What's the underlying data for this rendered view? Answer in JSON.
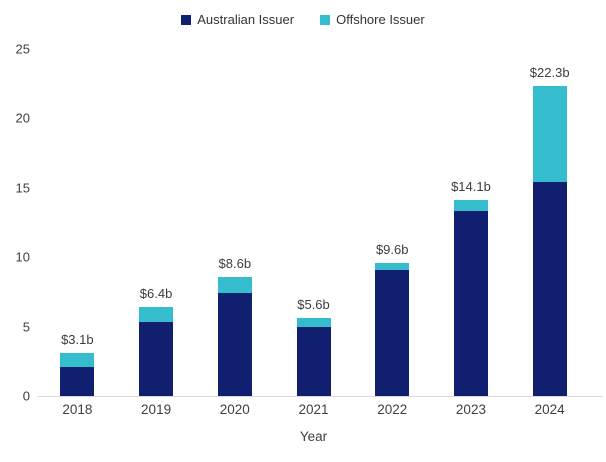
{
  "colors": {
    "australian_issuer": "#101f70",
    "offshore_issuer": "#36bdcd",
    "axis_line": "#d9d9d9",
    "text": "#404040"
  },
  "chart_data": {
    "type": "bar",
    "stacked": true,
    "title": "",
    "xlabel": "Year",
    "ylabel": "",
    "ylim": [
      0,
      25
    ],
    "yticks": [
      0,
      5,
      10,
      15,
      20,
      25
    ],
    "grid": false,
    "legend_position": "top-center",
    "categories": [
      "2018",
      "2019",
      "2020",
      "2021",
      "2022",
      "2023",
      "2024"
    ],
    "series": [
      {
        "name": "Australian Issuer",
        "color": "#101f70",
        "values": [
          2.1,
          5.3,
          7.4,
          5.0,
          9.1,
          13.3,
          15.4
        ]
      },
      {
        "name": "Offshore Issuer",
        "color": "#36bdcd",
        "values": [
          1.0,
          1.1,
          1.2,
          0.6,
          0.5,
          0.8,
          6.9
        ]
      }
    ],
    "totals": [
      3.1,
      6.4,
      8.6,
      5.6,
      9.6,
      14.1,
      22.3
    ],
    "bar_labels": [
      "$3.1b",
      "$6.4b",
      "$8.6b",
      "$5.6b",
      "$9.6b",
      "$14.1b",
      "$22.3b"
    ]
  }
}
